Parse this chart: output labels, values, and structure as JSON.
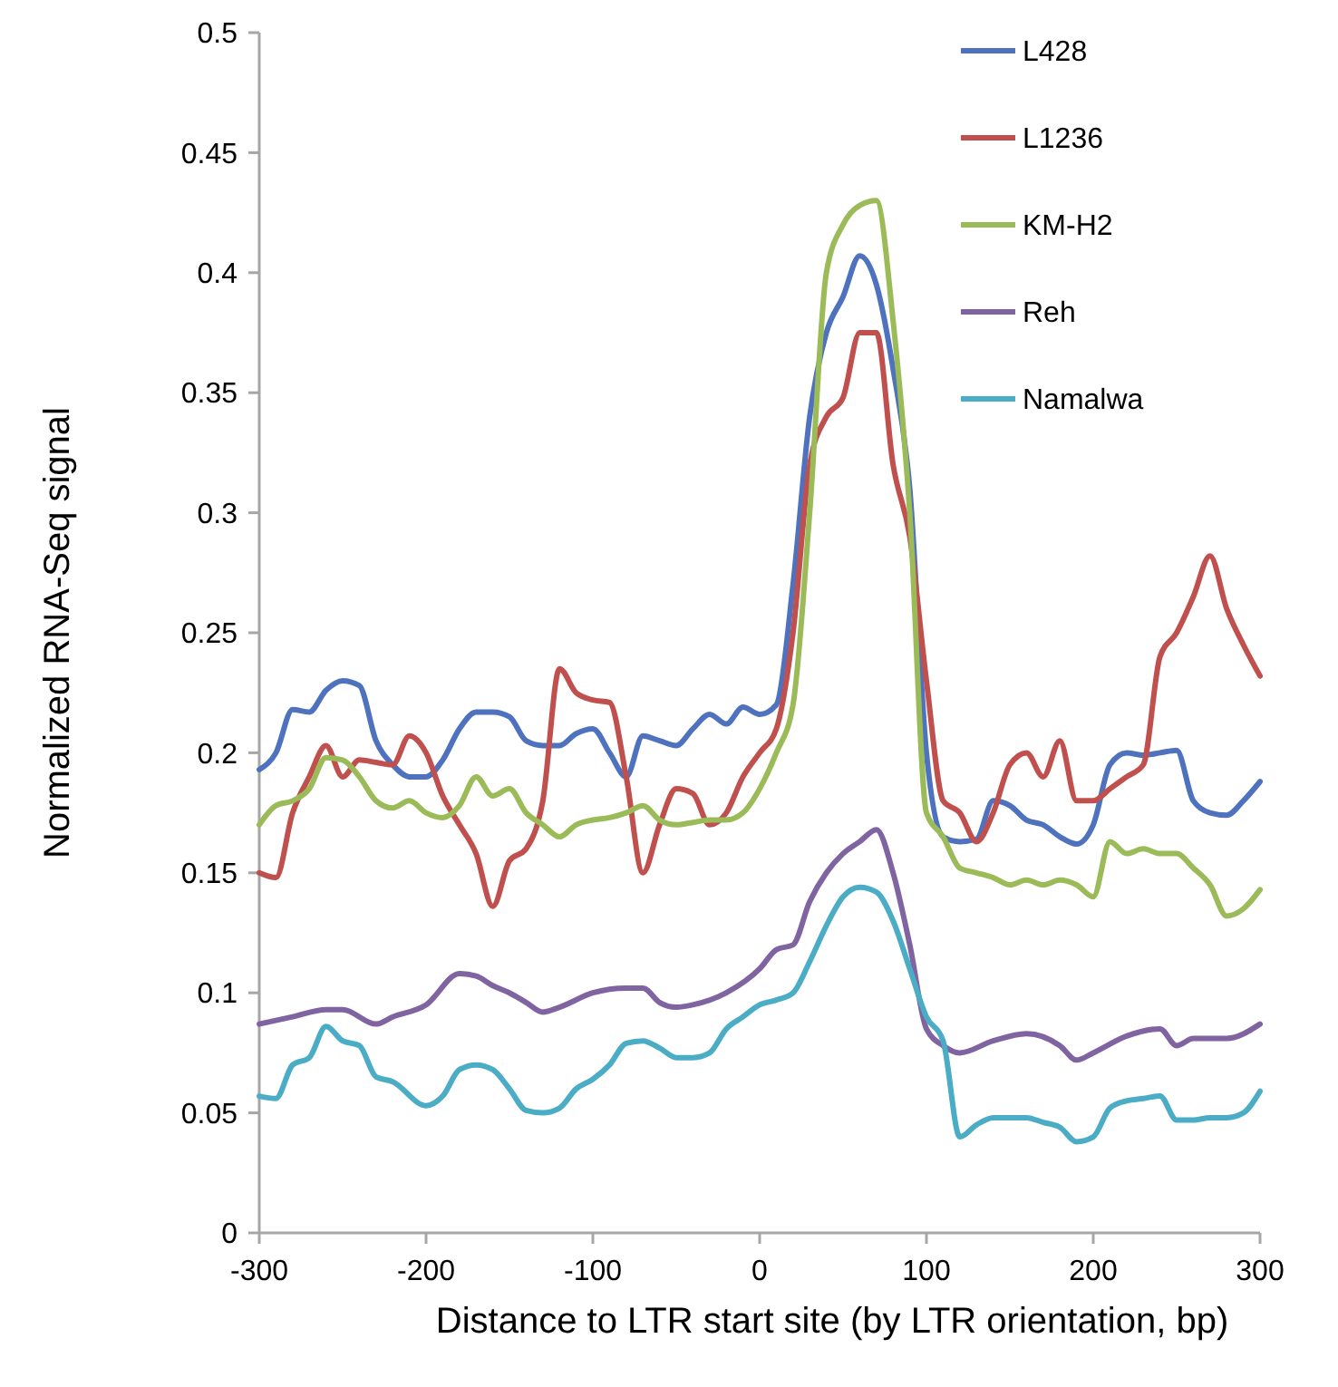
{
  "chart_data": {
    "type": "line",
    "xlabel": "Distance to LTR start site (by LTR orientation, bp)",
    "ylabel": "Normalized RNA-Seq signal",
    "xlim": [
      -300,
      300
    ],
    "xticks": [
      -300,
      -200,
      -100,
      0,
      100,
      200,
      300
    ],
    "ylim": [
      0,
      0.5
    ],
    "yticks": [
      0,
      0.05,
      0.1,
      0.15,
      0.2,
      0.25,
      0.3,
      0.35,
      0.4,
      0.45,
      0.5
    ],
    "grid": false,
    "legend": "top right",
    "marker": "none",
    "line_style": "solid",
    "series": [
      {
        "name": "L428",
        "color": "#4f72be",
        "x": [
          -300,
          -290,
          -280,
          -270,
          -260,
          -250,
          -240,
          -230,
          -220,
          -210,
          -200,
          -190,
          -180,
          -170,
          -160,
          -150,
          -140,
          -130,
          -120,
          -110,
          -100,
          -90,
          -80,
          -70,
          -60,
          -50,
          -40,
          -30,
          -20,
          -10,
          0,
          10,
          20,
          30,
          40,
          50,
          60,
          70,
          80,
          90,
          100,
          110,
          120,
          130,
          140,
          150,
          160,
          170,
          180,
          190,
          200,
          210,
          220,
          230,
          240,
          250,
          260,
          270,
          280,
          290,
          300
        ],
        "values": [
          0.193,
          0.2,
          0.218,
          0.217,
          0.226,
          0.23,
          0.228,
          0.205,
          0.195,
          0.19,
          0.19,
          0.197,
          0.21,
          0.217,
          0.217,
          0.215,
          0.205,
          0.203,
          0.203,
          0.208,
          0.21,
          0.2,
          0.19,
          0.207,
          0.205,
          0.203,
          0.21,
          0.216,
          0.212,
          0.219,
          0.216,
          0.22,
          0.27,
          0.34,
          0.375,
          0.39,
          0.407,
          0.395,
          0.36,
          0.31,
          0.2,
          0.165,
          0.163,
          0.164,
          0.18,
          0.178,
          0.172,
          0.17,
          0.165,
          0.162,
          0.17,
          0.195,
          0.2,
          0.199,
          0.2,
          0.201,
          0.18,
          0.175,
          0.174,
          0.18,
          0.188
        ]
      },
      {
        "name": "L1236",
        "color": "#c0504d",
        "x": [
          -300,
          -290,
          -280,
          -270,
          -260,
          -250,
          -240,
          -230,
          -220,
          -210,
          -200,
          -190,
          -180,
          -170,
          -160,
          -150,
          -140,
          -130,
          -120,
          -110,
          -100,
          -90,
          -80,
          -70,
          -60,
          -50,
          -40,
          -30,
          -20,
          -10,
          0,
          10,
          20,
          30,
          40,
          50,
          60,
          70,
          80,
          90,
          100,
          110,
          120,
          130,
          140,
          150,
          160,
          170,
          180,
          190,
          200,
          210,
          220,
          230,
          240,
          250,
          260,
          270,
          280,
          290,
          300
        ],
        "values": [
          0.15,
          0.148,
          0.175,
          0.19,
          0.203,
          0.19,
          0.197,
          0.196,
          0.195,
          0.207,
          0.2,
          0.182,
          0.17,
          0.158,
          0.136,
          0.155,
          0.16,
          0.18,
          0.235,
          0.225,
          0.222,
          0.221,
          0.19,
          0.15,
          0.17,
          0.185,
          0.183,
          0.17,
          0.175,
          0.19,
          0.2,
          0.21,
          0.25,
          0.32,
          0.34,
          0.348,
          0.375,
          0.375,
          0.32,
          0.29,
          0.23,
          0.18,
          0.175,
          0.163,
          0.175,
          0.195,
          0.2,
          0.19,
          0.205,
          0.18,
          0.18,
          0.185,
          0.19,
          0.195,
          0.24,
          0.25,
          0.265,
          0.282,
          0.26,
          0.245,
          0.232
        ]
      },
      {
        "name": "KM-H2",
        "color": "#9bbb59",
        "x": [
          -300,
          -290,
          -280,
          -270,
          -260,
          -250,
          -240,
          -230,
          -220,
          -210,
          -200,
          -190,
          -180,
          -170,
          -160,
          -150,
          -140,
          -130,
          -120,
          -110,
          -100,
          -90,
          -80,
          -70,
          -60,
          -50,
          -40,
          -30,
          -20,
          -10,
          0,
          10,
          20,
          30,
          40,
          50,
          60,
          70,
          80,
          90,
          100,
          110,
          120,
          130,
          140,
          150,
          160,
          170,
          180,
          190,
          200,
          210,
          220,
          230,
          240,
          250,
          260,
          270,
          280,
          290,
          300
        ],
        "values": [
          0.17,
          0.178,
          0.18,
          0.185,
          0.198,
          0.197,
          0.19,
          0.18,
          0.177,
          0.18,
          0.175,
          0.173,
          0.178,
          0.19,
          0.182,
          0.185,
          0.175,
          0.17,
          0.165,
          0.17,
          0.172,
          0.173,
          0.175,
          0.178,
          0.172,
          0.17,
          0.171,
          0.172,
          0.172,
          0.175,
          0.185,
          0.2,
          0.22,
          0.3,
          0.4,
          0.42,
          0.428,
          0.43,
          0.38,
          0.3,
          0.175,
          0.165,
          0.152,
          0.15,
          0.148,
          0.145,
          0.147,
          0.145,
          0.147,
          0.145,
          0.14,
          0.163,
          0.158,
          0.16,
          0.158,
          0.158,
          0.152,
          0.145,
          0.132,
          0.135,
          0.143
        ]
      },
      {
        "name": "Reh",
        "color": "#8064a2",
        "x": [
          -300,
          -280,
          -260,
          -250,
          -230,
          -220,
          -200,
          -180,
          -170,
          -160,
          -150,
          -140,
          -130,
          -120,
          -100,
          -80,
          -70,
          -60,
          -50,
          -40,
          -20,
          0,
          10,
          20,
          30,
          40,
          50,
          60,
          70,
          80,
          90,
          100,
          110,
          120,
          140,
          160,
          180,
          190,
          200,
          220,
          240,
          250,
          260,
          280,
          300
        ],
        "values": [
          0.087,
          0.09,
          0.093,
          0.093,
          0.087,
          0.09,
          0.095,
          0.108,
          0.107,
          0.103,
          0.1,
          0.096,
          0.092,
          0.094,
          0.1,
          0.102,
          0.102,
          0.096,
          0.094,
          0.095,
          0.1,
          0.11,
          0.118,
          0.12,
          0.138,
          0.15,
          0.158,
          0.163,
          0.168,
          0.15,
          0.12,
          0.085,
          0.078,
          0.075,
          0.08,
          0.083,
          0.078,
          0.072,
          0.075,
          0.082,
          0.085,
          0.078,
          0.081,
          0.081,
          0.087
        ]
      },
      {
        "name": "Namalwa",
        "color": "#4bacc6",
        "x": [
          -300,
          -290,
          -280,
          -270,
          -260,
          -250,
          -240,
          -230,
          -220,
          -200,
          -190,
          -180,
          -170,
          -160,
          -150,
          -140,
          -130,
          -120,
          -110,
          -100,
          -90,
          -80,
          -70,
          -60,
          -50,
          -40,
          -30,
          -20,
          -10,
          0,
          10,
          20,
          30,
          40,
          50,
          60,
          70,
          80,
          90,
          100,
          110,
          120,
          130,
          140,
          150,
          160,
          170,
          180,
          190,
          200,
          210,
          220,
          230,
          240,
          250,
          260,
          270,
          280,
          290,
          300
        ],
        "values": [
          0.057,
          0.056,
          0.07,
          0.073,
          0.086,
          0.08,
          0.078,
          0.065,
          0.063,
          0.053,
          0.057,
          0.068,
          0.07,
          0.068,
          0.06,
          0.051,
          0.05,
          0.052,
          0.06,
          0.064,
          0.07,
          0.079,
          0.08,
          0.077,
          0.073,
          0.073,
          0.075,
          0.085,
          0.09,
          0.095,
          0.097,
          0.1,
          0.113,
          0.128,
          0.14,
          0.144,
          0.142,
          0.13,
          0.11,
          0.09,
          0.08,
          0.04,
          0.045,
          0.048,
          0.048,
          0.048,
          0.046,
          0.044,
          0.038,
          0.04,
          0.052,
          0.055,
          0.056,
          0.057,
          0.047,
          0.047,
          0.048,
          0.048,
          0.05,
          0.059
        ]
      }
    ]
  }
}
